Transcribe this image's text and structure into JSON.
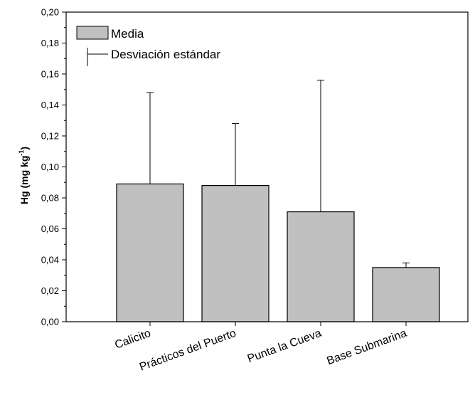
{
  "chart_data": {
    "type": "bar",
    "categories": [
      "Calicito",
      "Prácticos del Puerto",
      "Punta la Cueva",
      "Base Submarina"
    ],
    "series": [
      {
        "name": "Media",
        "values": [
          0.089,
          0.088,
          0.071,
          0.035
        ],
        "error_upper": [
          0.148,
          0.128,
          0.156,
          0.038
        ]
      }
    ],
    "ylabel": "Hg (mg kg",
    "ylabel_sup": "-1",
    "ylabel_close": ")",
    "ylim": [
      0,
      0.2
    ],
    "yticks": [
      0.0,
      0.02,
      0.04,
      0.06,
      0.08,
      0.1,
      0.12,
      0.14,
      0.16,
      0.18,
      0.2
    ],
    "ytick_labels": [
      "0,00",
      "0,02",
      "0,04",
      "0,06",
      "0,08",
      "0,10",
      "0,12",
      "0,14",
      "0,16",
      "0,18",
      "0,20"
    ],
    "legend": {
      "placement": "top-left",
      "bar_label": "Media",
      "error_label": "Desviación estándar"
    },
    "bar_color": "#c0c0c0",
    "grid": false
  }
}
